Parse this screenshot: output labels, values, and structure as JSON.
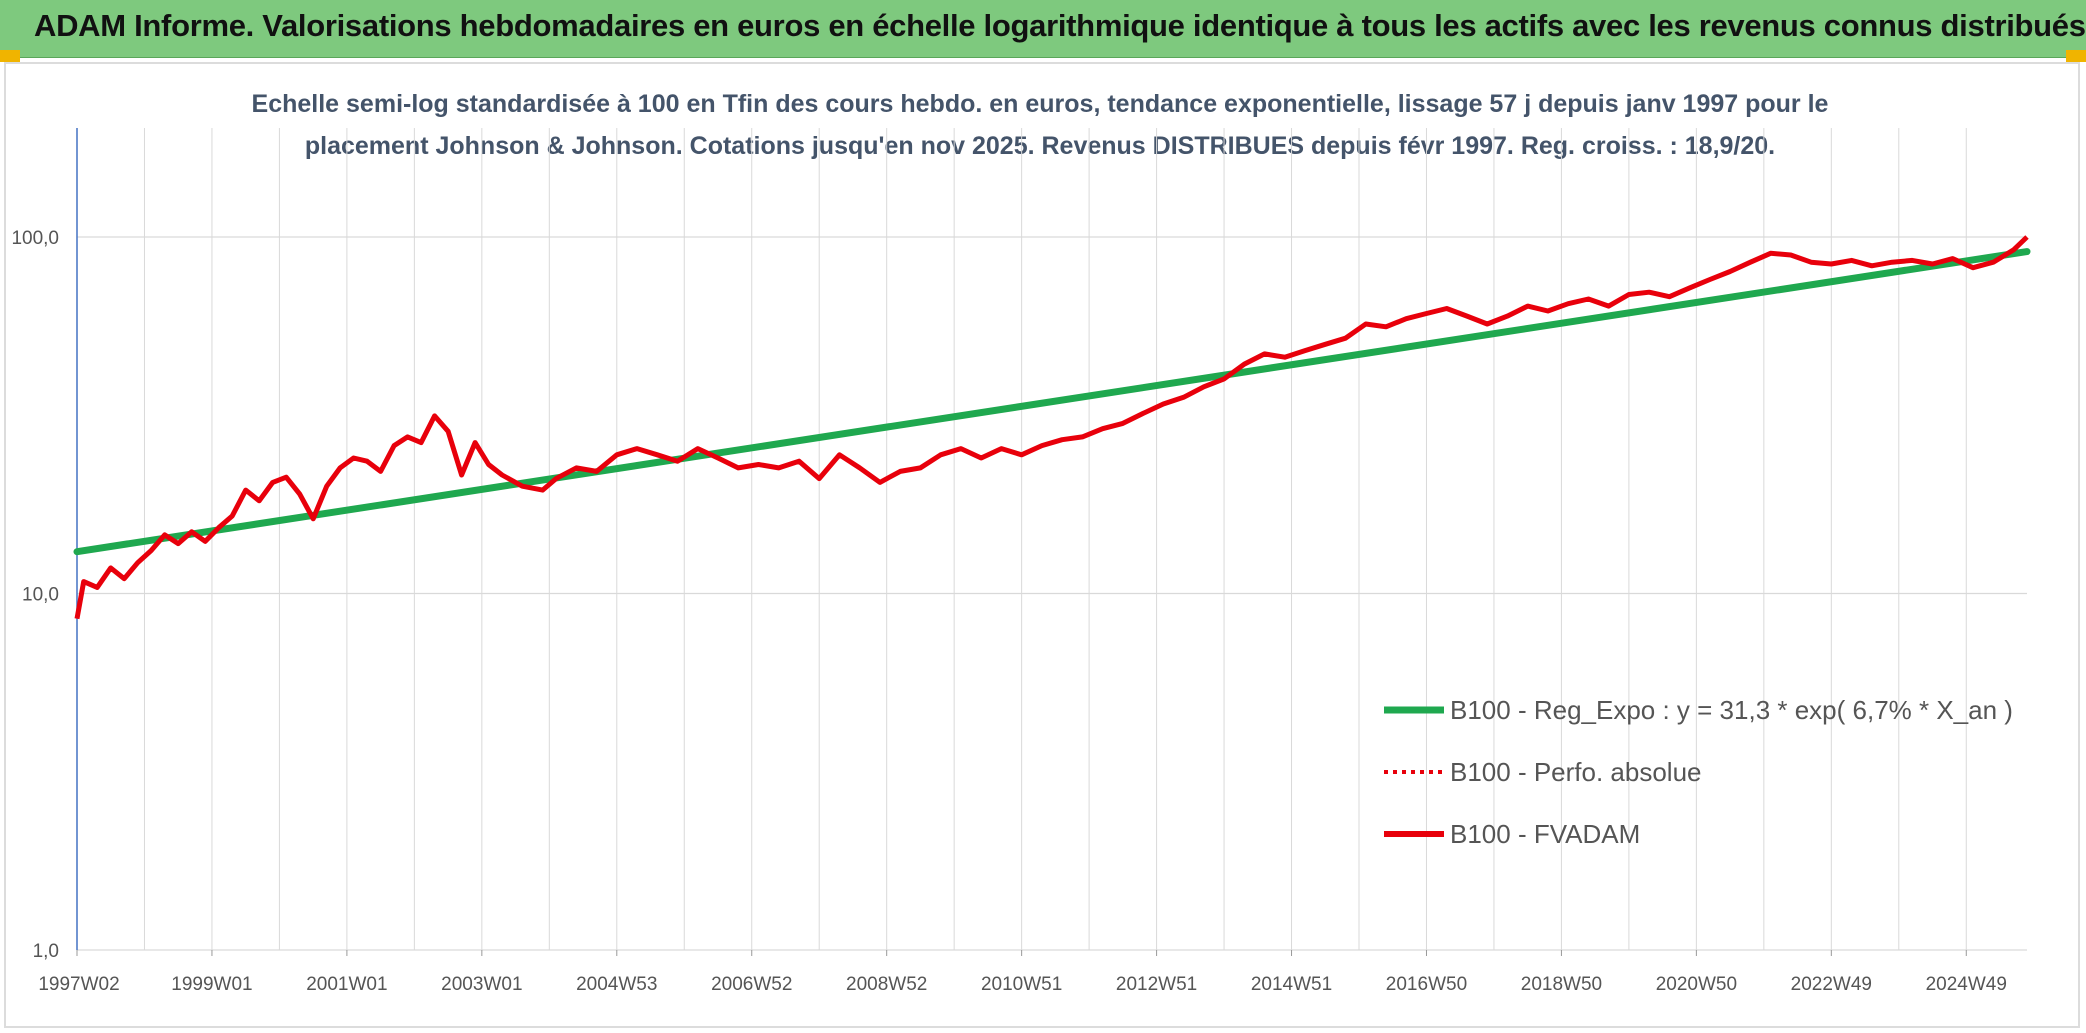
{
  "header": {
    "title": "ADAM Informe. Valorisations hebdomadaires en euros en échelle logarithmique identique à tous les actifs avec les revenus connus distribués"
  },
  "chart_data": {
    "type": "line",
    "title_line1": "Echelle semi-log standardisée à 100 en Tfin des cours hebdo. en euros, tendance exponentielle, lissage 57 j depuis janv 1997 pour le",
    "title_line2": "placement Johnson & Johnson. Cotations jusqu'en nov 2025. Revenus DISTRIBUES depuis févr 1997. Reg. croiss. : 18,9/20.",
    "y_scale": "log",
    "ylim": [
      1,
      180
    ],
    "y_ticks": [
      1,
      10,
      100
    ],
    "y_tick_labels": [
      "1,0",
      "10,0",
      "100,0"
    ],
    "xlim": [
      1997.0,
      2025.9
    ],
    "x_ticks": [
      1997.0,
      1999.0,
      2001.0,
      2003.0,
      2005.0,
      2007.0,
      2009.0,
      2011.0,
      2013.0,
      2015.0,
      2017.0,
      2019.0,
      2021.0,
      2023.0,
      2025.0
    ],
    "x_tick_labels": [
      "1997W02",
      "1999W01",
      "2001W01",
      "2003W01",
      "2004W53",
      "2006W52",
      "2008W52",
      "2010W51",
      "2012W51",
      "2014W51",
      "2016W50",
      "2018W50",
      "2020W50",
      "2022W49",
      "2024W49"
    ],
    "grid": true,
    "legend_position": "bottom-right",
    "colors": {
      "trend": "#1fa84f",
      "fvadam": "#e8000b",
      "perfo": "#e8000b",
      "grid": "#d9d9d9",
      "axis": "#4472c4"
    },
    "series": [
      {
        "name": "B100 - Reg_Expo : y = 31,3 * exp( 6,7% *  X_an )",
        "style": "solid-green-thick",
        "x": [
          1997.0,
          2025.9
        ],
        "values": [
          13.1,
          91.0
        ]
      },
      {
        "name": "B100 - Perfo. absolue",
        "style": "dotted-red",
        "x": [],
        "values": []
      },
      {
        "name": "B100 - FVADAM",
        "style": "solid-red-thick",
        "x": [
          1997.0,
          1997.1,
          1997.3,
          1997.5,
          1997.7,
          1997.9,
          1998.1,
          1998.3,
          1998.5,
          1998.7,
          1998.9,
          1999.1,
          1999.3,
          1999.5,
          1999.7,
          1999.9,
          2000.1,
          2000.3,
          2000.5,
          2000.7,
          2000.9,
          2001.1,
          2001.3,
          2001.5,
          2001.7,
          2001.9,
          2002.1,
          2002.3,
          2002.5,
          2002.7,
          2002.9,
          2003.1,
          2003.3,
          2003.6,
          2003.9,
          2004.1,
          2004.4,
          2004.7,
          2005.0,
          2005.3,
          2005.6,
          2005.9,
          2006.2,
          2006.5,
          2006.8,
          2007.1,
          2007.4,
          2007.7,
          2008.0,
          2008.3,
          2008.6,
          2008.9,
          2009.2,
          2009.5,
          2009.8,
          2010.1,
          2010.4,
          2010.7,
          2011.0,
          2011.3,
          2011.6,
          2011.9,
          2012.2,
          2012.5,
          2012.8,
          2013.1,
          2013.4,
          2013.7,
          2014.0,
          2014.3,
          2014.6,
          2014.9,
          2015.2,
          2015.5,
          2015.8,
          2016.1,
          2016.4,
          2016.7,
          2017.0,
          2017.3,
          2017.6,
          2017.9,
          2018.2,
          2018.5,
          2018.8,
          2019.1,
          2019.4,
          2019.7,
          2020.0,
          2020.3,
          2020.6,
          2020.9,
          2021.2,
          2021.5,
          2021.8,
          2022.1,
          2022.4,
          2022.7,
          2023.0,
          2023.3,
          2023.6,
          2023.9,
          2024.2,
          2024.5,
          2024.8,
          2025.1,
          2025.4,
          2025.7,
          2025.9
        ],
        "values": [
          8.5,
          10.8,
          10.4,
          11.8,
          11.0,
          12.2,
          13.2,
          14.6,
          13.8,
          14.9,
          14.0,
          15.3,
          16.5,
          19.5,
          18.2,
          20.5,
          21.2,
          19.0,
          16.2,
          20.0,
          22.5,
          24.0,
          23.5,
          22.0,
          26.0,
          27.5,
          26.5,
          31.5,
          28.5,
          21.5,
          26.5,
          23.0,
          21.5,
          20.0,
          19.5,
          21.0,
          22.5,
          22.0,
          24.5,
          25.5,
          24.5,
          23.5,
          25.5,
          24.0,
          22.5,
          23.0,
          22.5,
          23.5,
          21.0,
          24.5,
          22.5,
          20.5,
          22.0,
          22.5,
          24.5,
          25.5,
          24.0,
          25.5,
          24.5,
          26.0,
          27.0,
          27.5,
          29.0,
          30.0,
          32.0,
          34.0,
          35.5,
          38.0,
          40.0,
          44.0,
          47.0,
          46.0,
          48.0,
          50.0,
          52.0,
          57.0,
          56.0,
          59.0,
          61.0,
          63.0,
          60.0,
          57.0,
          60.0,
          64.0,
          62.0,
          65.0,
          67.0,
          64.0,
          69.0,
          70.0,
          68.0,
          72.0,
          76.0,
          80.0,
          85.0,
          90.0,
          89.0,
          85.0,
          84.0,
          86.0,
          83.0,
          85.0,
          86.0,
          84.0,
          87.0,
          82.0,
          85.0,
          92.0,
          100.0
        ]
      }
    ]
  }
}
